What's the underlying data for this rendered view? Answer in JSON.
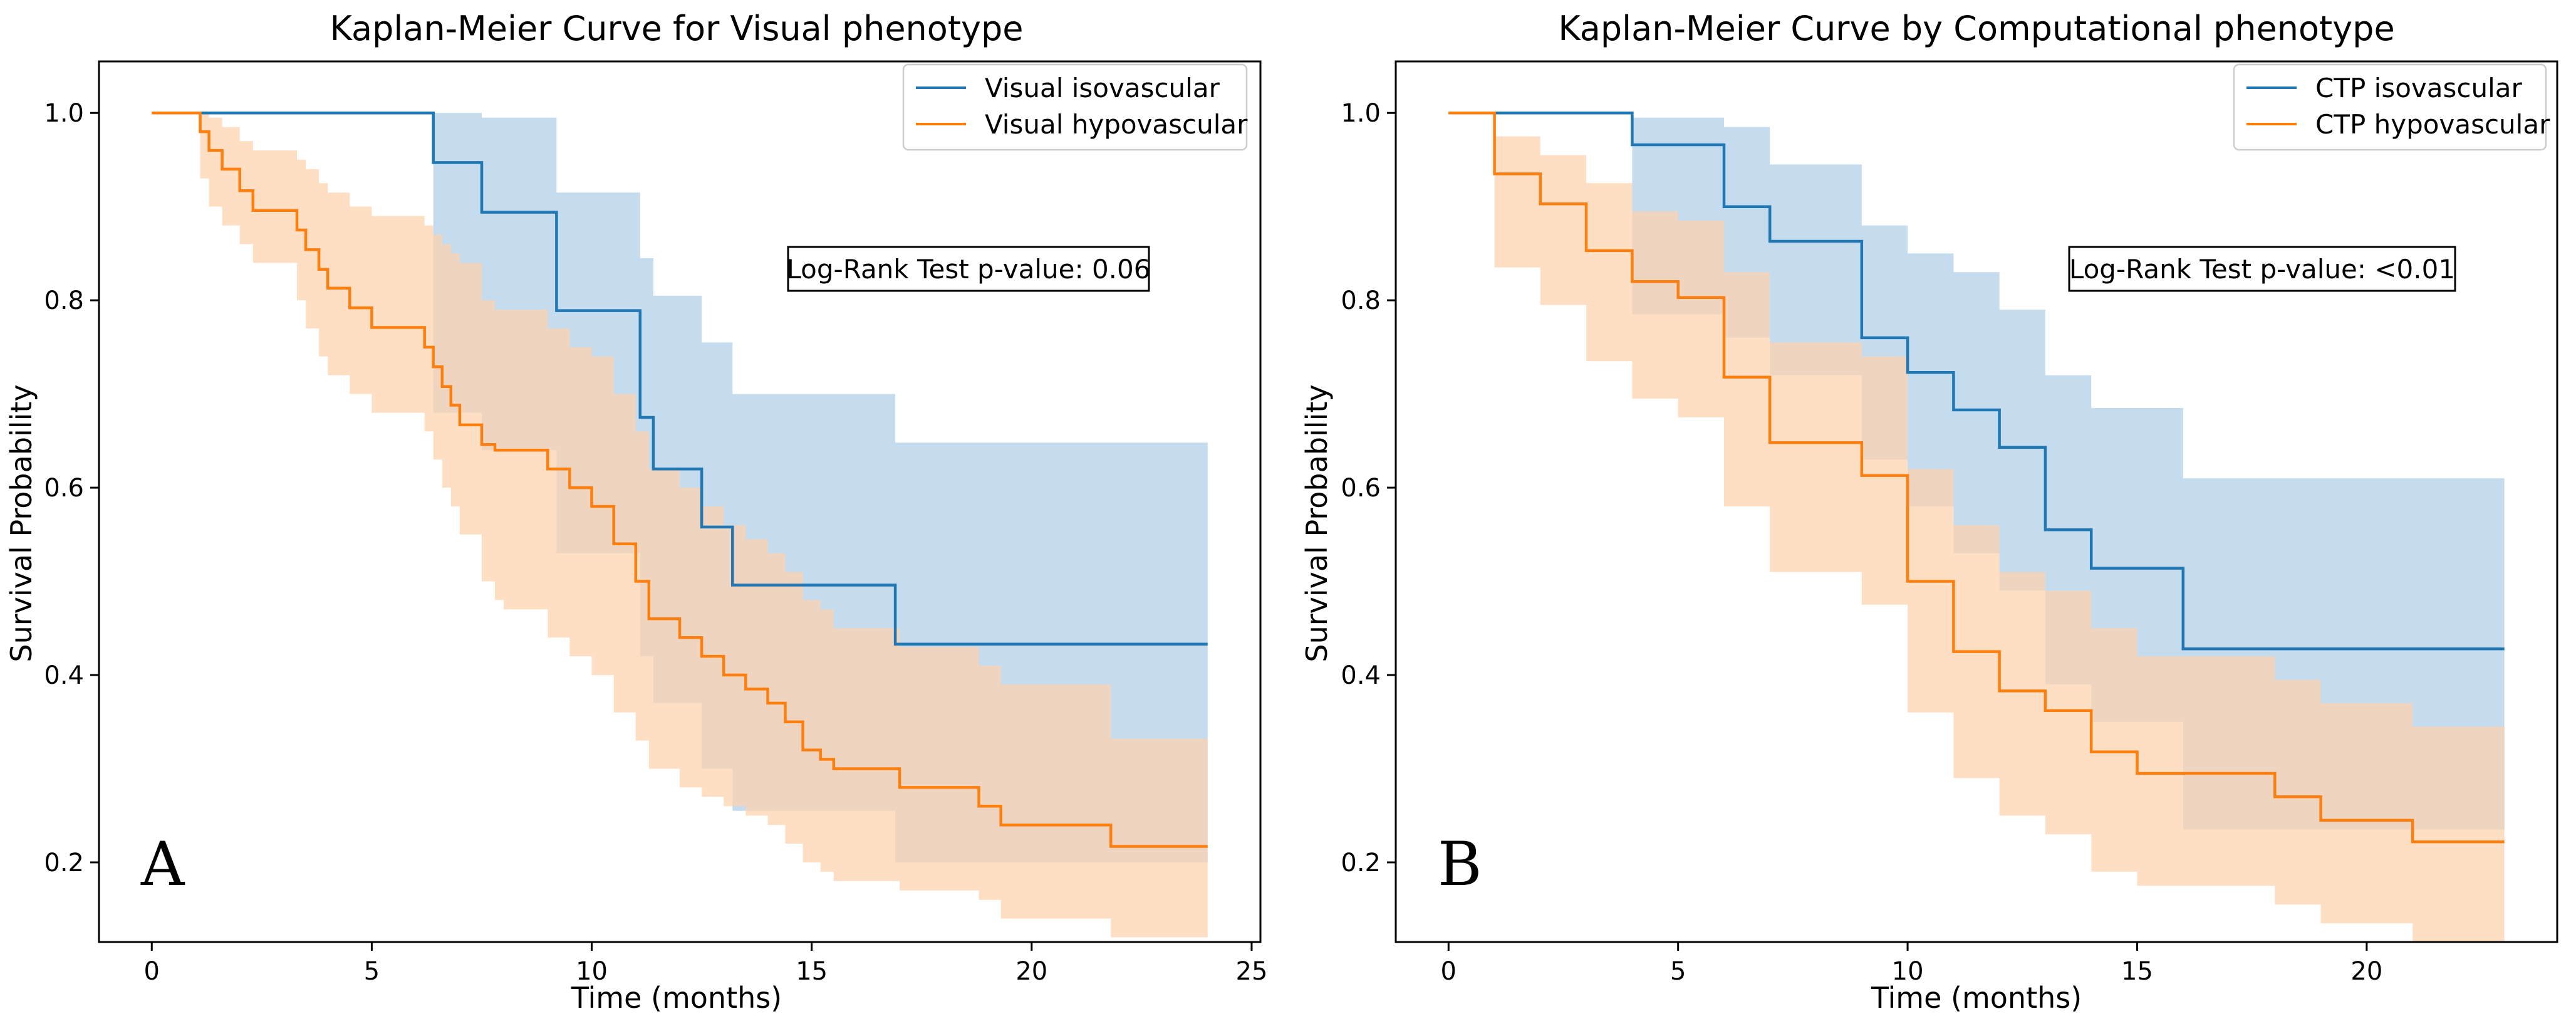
{
  "chart_data": [
    {
      "type": "line",
      "subtype": "kaplan-meier-step",
      "title": "Kaplan-Meier Curve for Visual phenotype",
      "xlabel": "Time (months)",
      "ylabel": "Survival Probability",
      "xlim": [
        -1.2,
        25.2
      ],
      "ylim": [
        0.115,
        1.055
      ],
      "xticks": [
        0,
        5,
        10,
        15,
        20,
        25
      ],
      "yticks": [
        0.2,
        0.4,
        0.6,
        0.8,
        1.0
      ],
      "xtick_labels": [
        "0",
        "5",
        "10",
        "15",
        "20",
        "25"
      ],
      "ytick_labels": [
        "0.2",
        "0.4",
        "0.6",
        "0.8",
        "1.0"
      ],
      "legend_position": "top-right",
      "annotation": "Log-Rank Test p-value: 0.06",
      "panel_label": "A",
      "series": [
        {
          "name": "Visual isovascular",
          "color": "#1f77b4",
          "ci_color": "#aecde8",
          "times": [
            0,
            6.4,
            7.5,
            9.2,
            11.1,
            11.4,
            12.5,
            13.2,
            16.9,
            24.0
          ],
          "survival": [
            1.0,
            0.947,
            0.894,
            0.789,
            0.675,
            0.62,
            0.558,
            0.496,
            0.433,
            0.433
          ],
          "ci_upper": [
            1.0,
            1.0,
            0.995,
            0.915,
            0.845,
            0.805,
            0.755,
            0.7,
            0.648,
            0.648
          ],
          "ci_lower": [
            1.0,
            0.68,
            0.64,
            0.53,
            0.42,
            0.37,
            0.3,
            0.255,
            0.2,
            0.2
          ]
        },
        {
          "name": "Visual hypovascular",
          "color": "#ff7f0e",
          "ci_color": "#ffd2ad",
          "times": [
            0,
            1.1,
            1.3,
            1.6,
            2.0,
            2.3,
            3.3,
            3.5,
            3.8,
            4.0,
            4.5,
            5.0,
            6.2,
            6.4,
            6.6,
            6.8,
            7.0,
            7.5,
            7.8,
            8.0,
            9.0,
            9.5,
            10.0,
            10.5,
            11.0,
            11.3,
            12.0,
            12.5,
            13.0,
            13.5,
            14.0,
            14.4,
            14.8,
            15.2,
            15.5,
            17.0,
            18.8,
            19.3,
            21.8,
            24.0
          ],
          "survival": [
            1.0,
            0.98,
            0.96,
            0.94,
            0.917,
            0.896,
            0.875,
            0.854,
            0.833,
            0.813,
            0.792,
            0.771,
            0.75,
            0.729,
            0.708,
            0.688,
            0.667,
            0.646,
            0.64,
            0.64,
            0.62,
            0.6,
            0.58,
            0.54,
            0.5,
            0.46,
            0.44,
            0.42,
            0.4,
            0.385,
            0.37,
            0.35,
            0.32,
            0.31,
            0.3,
            0.28,
            0.26,
            0.24,
            0.217,
            0.217
          ],
          "ci_upper": [
            1.0,
            1.0,
            0.995,
            0.985,
            0.97,
            0.96,
            0.95,
            0.94,
            0.925,
            0.915,
            0.9,
            0.89,
            0.88,
            0.87,
            0.86,
            0.85,
            0.84,
            0.8,
            0.79,
            0.79,
            0.77,
            0.75,
            0.74,
            0.7,
            0.66,
            0.62,
            0.6,
            0.58,
            0.56,
            0.545,
            0.53,
            0.51,
            0.48,
            0.47,
            0.45,
            0.43,
            0.41,
            0.39,
            0.332,
            0.332
          ],
          "ci_lower": [
            1.0,
            0.93,
            0.9,
            0.88,
            0.86,
            0.84,
            0.8,
            0.77,
            0.74,
            0.72,
            0.7,
            0.68,
            0.66,
            0.63,
            0.6,
            0.58,
            0.55,
            0.5,
            0.48,
            0.47,
            0.44,
            0.42,
            0.4,
            0.36,
            0.33,
            0.3,
            0.28,
            0.27,
            0.26,
            0.25,
            0.24,
            0.22,
            0.2,
            0.19,
            0.18,
            0.17,
            0.16,
            0.14,
            0.12,
            0.12
          ]
        }
      ]
    },
    {
      "type": "line",
      "subtype": "kaplan-meier-step",
      "title": "Kaplan-Meier Curve by Computational phenotype",
      "xlabel": "Time (months)",
      "ylabel": "Survival Probability",
      "xlim": [
        -1.15,
        24.15
      ],
      "ylim": [
        0.115,
        1.055
      ],
      "xticks": [
        0,
        5,
        10,
        15,
        20
      ],
      "yticks": [
        0.2,
        0.4,
        0.6,
        0.8,
        1.0
      ],
      "xtick_labels": [
        "0",
        "5",
        "10",
        "15",
        "20"
      ],
      "ytick_labels": [
        "0.2",
        "0.4",
        "0.6",
        "0.8",
        "1.0"
      ],
      "legend_position": "top-right",
      "annotation": "Log-Rank Test p-value: <0.01",
      "panel_label": "B",
      "series": [
        {
          "name": "CTP isovascular",
          "color": "#1f77b4",
          "ci_color": "#aecde8",
          "times": [
            0,
            4,
            6,
            7,
            9,
            10,
            11,
            12,
            13,
            14,
            16,
            23
          ],
          "survival": [
            1.0,
            0.966,
            0.9,
            0.863,
            0.76,
            0.723,
            0.683,
            0.643,
            0.555,
            0.514,
            0.428,
            0.428
          ],
          "ci_upper": [
            1.0,
            0.995,
            0.985,
            0.945,
            0.88,
            0.85,
            0.83,
            0.79,
            0.72,
            0.685,
            0.61,
            0.61
          ],
          "ci_lower": [
            1.0,
            0.785,
            0.76,
            0.72,
            0.63,
            0.58,
            0.53,
            0.49,
            0.39,
            0.35,
            0.235,
            0.235
          ]
        },
        {
          "name": "CTP hypovascular",
          "color": "#ff7f0e",
          "ci_color": "#ffd2ad",
          "times": [
            0,
            1,
            2,
            3,
            4,
            5,
            6,
            7,
            9,
            10,
            11,
            12,
            13,
            14,
            15,
            18,
            19,
            21,
            23
          ],
          "survival": [
            1.0,
            0.935,
            0.903,
            0.853,
            0.82,
            0.803,
            0.718,
            0.648,
            0.613,
            0.5,
            0.425,
            0.383,
            0.362,
            0.318,
            0.295,
            0.27,
            0.245,
            0.222,
            0.222
          ],
          "ci_upper": [
            1.0,
            0.975,
            0.955,
            0.925,
            0.895,
            0.885,
            0.83,
            0.755,
            0.74,
            0.62,
            0.56,
            0.51,
            0.49,
            0.45,
            0.42,
            0.395,
            0.37,
            0.345,
            0.345
          ],
          "ci_lower": [
            1.0,
            0.835,
            0.795,
            0.735,
            0.695,
            0.675,
            0.58,
            0.51,
            0.475,
            0.36,
            0.29,
            0.25,
            0.23,
            0.19,
            0.175,
            0.155,
            0.135,
            0.115,
            0.115
          ]
        }
      ]
    }
  ]
}
